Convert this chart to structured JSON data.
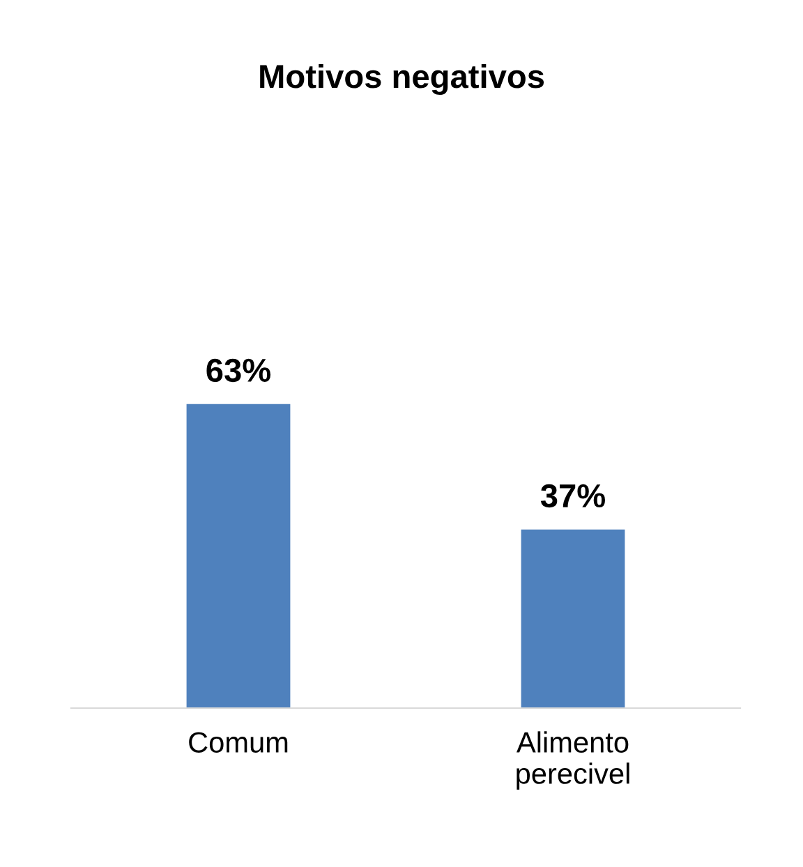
{
  "chart_data": {
    "type": "bar",
    "title": "Motivos negativos",
    "categories": [
      "Comum",
      "Alimento\nperecivel"
    ],
    "values": [
      63,
      37
    ],
    "value_labels": [
      "63%",
      "37%"
    ],
    "color": "#4f81bd",
    "grid": false,
    "legend": false
  }
}
